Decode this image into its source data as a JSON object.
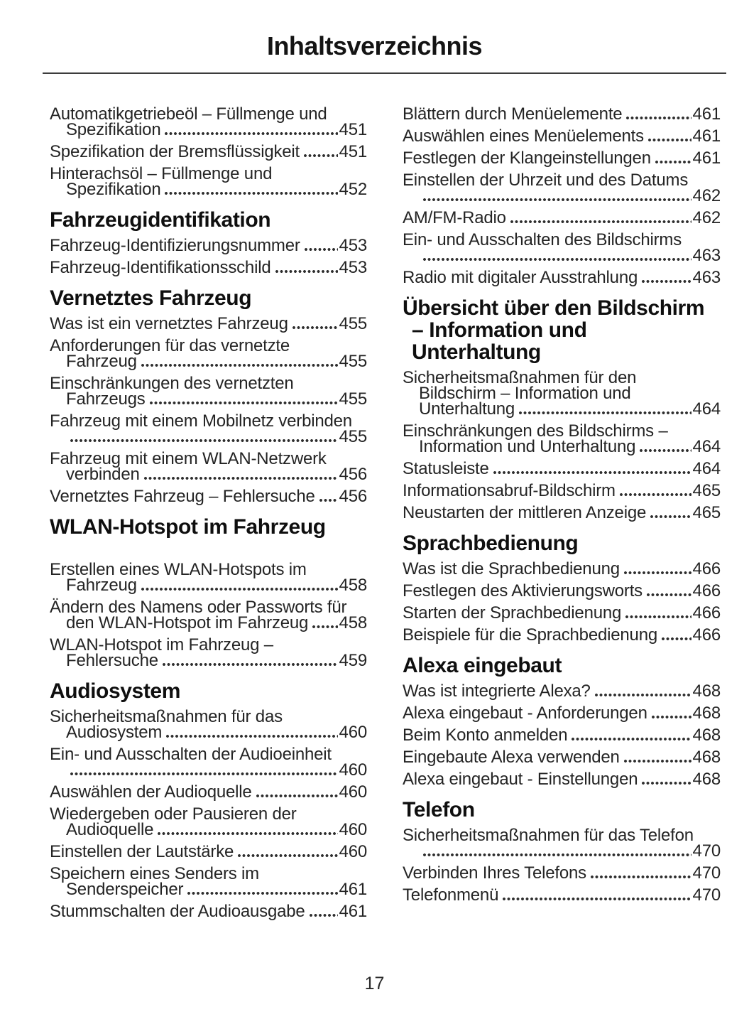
{
  "title": "Inhaltsverzeichnis",
  "page_number": "17",
  "columns": [
    {
      "name": "left",
      "sections": [
        {
          "heading_lines": [],
          "extra_gap": false,
          "entries": [
            {
              "lines": [
                "Automatikgetriebeöl – Füllmenge und",
                "Spezifikation"
              ],
              "page": "451"
            },
            {
              "lines": [
                "Spezifikation der Bremsflüssigkeit"
              ],
              "page": "451"
            },
            {
              "lines": [
                "Hinterachsöl – Füllmenge und",
                "Spezifikation"
              ],
              "page": "452"
            }
          ]
        },
        {
          "heading_lines": [
            "Fahrzeugidentifikation"
          ],
          "extra_gap": false,
          "entries": [
            {
              "lines": [
                "Fahrzeug-Identifizierungsnummer"
              ],
              "page": "453"
            },
            {
              "lines": [
                "Fahrzeug-Identifikationsschild"
              ],
              "page": "453"
            }
          ]
        },
        {
          "heading_lines": [
            "Vernetztes Fahrzeug"
          ],
          "extra_gap": false,
          "entries": [
            {
              "lines": [
                "Was ist ein vernetztes Fahrzeug"
              ],
              "page": "455"
            },
            {
              "lines": [
                "Anforderungen für das vernetzte",
                "Fahrzeug"
              ],
              "page": "455"
            },
            {
              "lines": [
                "Einschränkungen des vernetzten",
                "Fahrzeugs"
              ],
              "page": "455"
            },
            {
              "lines": [
                "Fahrzeug mit einem Mobilnetz verbinden",
                ""
              ],
              "page": "455"
            },
            {
              "lines": [
                "Fahrzeug mit einem WLAN-Netzwerk",
                "verbinden"
              ],
              "page": "456"
            },
            {
              "lines": [
                "Vernetztes Fahrzeug – Fehlersuche"
              ],
              "page": "456"
            }
          ]
        },
        {
          "heading_lines": [
            "WLAN-Hotspot im Fahrzeug"
          ],
          "extra_gap": true,
          "entries": [
            {
              "lines": [
                "Erstellen eines WLAN-Hotspots im",
                "Fahrzeug"
              ],
              "page": "458"
            },
            {
              "lines": [
                "Ändern des Namens oder Passworts für",
                "den WLAN-Hotspot im Fahrzeug"
              ],
              "page": "458"
            },
            {
              "lines": [
                "WLAN-Hotspot im Fahrzeug –",
                "Fehlersuche"
              ],
              "page": "459"
            }
          ]
        },
        {
          "heading_lines": [
            "Audiosystem"
          ],
          "extra_gap": false,
          "entries": [
            {
              "lines": [
                "Sicherheitsmaßnahmen für das",
                "Audiosystem"
              ],
              "page": "460"
            },
            {
              "lines": [
                "Ein- und Ausschalten der Audioeinheit",
                ""
              ],
              "page": "460"
            },
            {
              "lines": [
                "Auswählen der Audioquelle"
              ],
              "page": "460"
            },
            {
              "lines": [
                "Wiedergeben oder Pausieren der",
                "Audioquelle"
              ],
              "page": "460"
            },
            {
              "lines": [
                "Einstellen der Lautstärke"
              ],
              "page": "460"
            },
            {
              "lines": [
                "Speichern eines Senders im",
                "Senderspeicher"
              ],
              "page": "461"
            },
            {
              "lines": [
                "Stummschalten der Audioausgabe"
              ],
              "page": "461"
            }
          ]
        }
      ]
    },
    {
      "name": "right",
      "sections": [
        {
          "heading_lines": [],
          "extra_gap": false,
          "entries": [
            {
              "lines": [
                "Blättern durch Menüelemente"
              ],
              "page": "461"
            },
            {
              "lines": [
                "Auswählen eines Menüelements"
              ],
              "page": "461"
            },
            {
              "lines": [
                "Festlegen der Klangeinstellungen"
              ],
              "page": "461"
            },
            {
              "lines": [
                "Einstellen der Uhrzeit und des Datums",
                ""
              ],
              "page": "462"
            },
            {
              "lines": [
                "AM/FM-Radio"
              ],
              "page": "462"
            },
            {
              "lines": [
                "Ein- und Ausschalten des Bildschirms",
                ""
              ],
              "page": "463"
            },
            {
              "lines": [
                "Radio mit digitaler Ausstrahlung"
              ],
              "page": "463"
            }
          ]
        },
        {
          "heading_lines": [
            "Übersicht über den Bildschirm",
            "– Information und",
            "Unterhaltung"
          ],
          "extra_gap": false,
          "entries": [
            {
              "lines": [
                "Sicherheitsmaßnahmen für den",
                "Bildschirm – Information und",
                "Unterhaltung"
              ],
              "page": "464"
            },
            {
              "lines": [
                "Einschränkungen des Bildschirms –",
                "Information und Unterhaltung"
              ],
              "page": "464"
            },
            {
              "lines": [
                "Statusleiste"
              ],
              "page": "464"
            },
            {
              "lines": [
                "Informationsabruf-Bildschirm"
              ],
              "page": "465"
            },
            {
              "lines": [
                "Neustarten der mittleren Anzeige"
              ],
              "page": "465"
            }
          ]
        },
        {
          "heading_lines": [
            "Sprachbedienung"
          ],
          "extra_gap": false,
          "entries": [
            {
              "lines": [
                "Was ist die Sprachbedienung"
              ],
              "page": "466"
            },
            {
              "lines": [
                "Festlegen des Aktivierungsworts"
              ],
              "page": "466"
            },
            {
              "lines": [
                "Starten der Sprachbedienung"
              ],
              "page": "466"
            },
            {
              "lines": [
                "Beispiele für die Sprachbedienung"
              ],
              "page": "466"
            }
          ]
        },
        {
          "heading_lines": [
            "Alexa eingebaut"
          ],
          "extra_gap": false,
          "entries": [
            {
              "lines": [
                "Was ist integrierte Alexa?"
              ],
              "page": "468"
            },
            {
              "lines": [
                "Alexa eingebaut - Anforderungen"
              ],
              "page": "468"
            },
            {
              "lines": [
                "Beim Konto anmelden"
              ],
              "page": "468"
            },
            {
              "lines": [
                "Eingebaute Alexa verwenden"
              ],
              "page": "468"
            },
            {
              "lines": [
                "Alexa eingebaut - Einstellungen"
              ],
              "page": "468"
            }
          ]
        },
        {
          "heading_lines": [
            "Telefon"
          ],
          "extra_gap": false,
          "entries": [
            {
              "lines": [
                "Sicherheitsmaßnahmen für das Telefon",
                ""
              ],
              "page": "470"
            },
            {
              "lines": [
                "Verbinden Ihres Telefons"
              ],
              "page": "470"
            },
            {
              "lines": [
                "Telefonmenü"
              ],
              "page": "470"
            }
          ]
        }
      ]
    }
  ]
}
